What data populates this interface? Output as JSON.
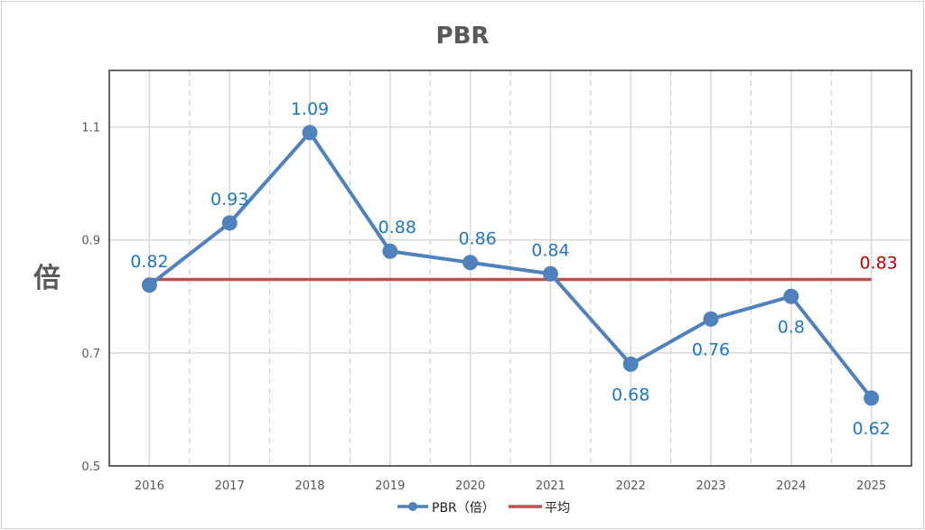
{
  "chart_data": {
    "type": "line",
    "title": "PBR",
    "ylabel": "倍",
    "xlabel": "",
    "categories": [
      "2016",
      "2017",
      "2018",
      "2019",
      "2020",
      "2021",
      "2022",
      "2023",
      "2024",
      "2025"
    ],
    "series": [
      {
        "name": "PBR（倍）",
        "values": [
          0.82,
          0.93,
          1.09,
          0.88,
          0.86,
          0.84,
          0.68,
          0.76,
          0.8,
          0.62
        ],
        "color": "#4f81bd",
        "label_color": "#1f77c4"
      },
      {
        "name": "平均",
        "values": [
          0.83,
          0.83,
          0.83,
          0.83,
          0.83,
          0.83,
          0.83,
          0.83,
          0.83,
          0.83
        ],
        "color": "#c0504d",
        "label": "0.83"
      }
    ],
    "ylim": [
      0.5,
      1.2
    ],
    "yticks": [
      "0.5",
      "0.7",
      "0.9",
      "1.1"
    ],
    "grid": true,
    "legend": "bottom"
  }
}
